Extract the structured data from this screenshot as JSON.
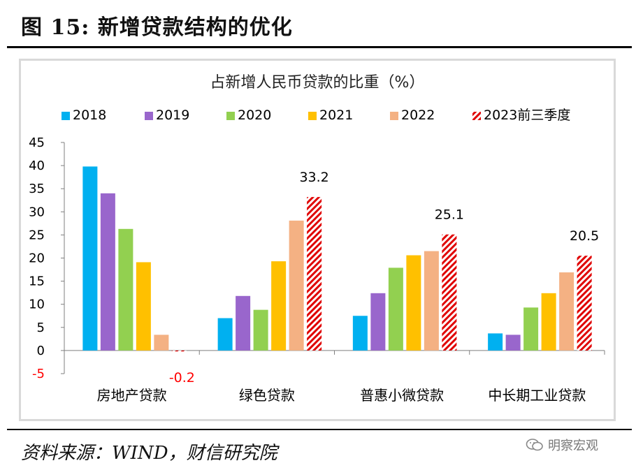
{
  "figure": {
    "title": "图 15:  新增贷款结构的优化",
    "source": "资料来源：WIND，财信研究院",
    "watermark": "明察宏观",
    "watermark_icon": "wechat-icon"
  },
  "chart_data": {
    "type": "bar",
    "title": "占新增人民币贷款的比重（%）",
    "categories": [
      "房地产贷款",
      "绿色贷款",
      "普惠小微贷款",
      "中长期工业贷款"
    ],
    "series": [
      {
        "name": "2018",
        "values": [
          39.8,
          7.0,
          7.5,
          3.7
        ],
        "color": "#00b0f0",
        "pattern": "solid"
      },
      {
        "name": "2019",
        "values": [
          34.0,
          11.8,
          12.4,
          3.4
        ],
        "color": "#9966cc",
        "pattern": "solid"
      },
      {
        "name": "2020",
        "values": [
          26.3,
          8.8,
          17.9,
          9.3
        ],
        "color": "#92d050",
        "pattern": "solid"
      },
      {
        "name": "2021",
        "values": [
          19.1,
          19.3,
          20.6,
          12.4
        ],
        "color": "#ffc000",
        "pattern": "solid"
      },
      {
        "name": "2022",
        "values": [
          3.4,
          28.1,
          21.5,
          16.9
        ],
        "color": "#f4b183",
        "pattern": "solid"
      },
      {
        "name": "2023前三季度",
        "values": [
          -0.2,
          33.2,
          25.1,
          20.5
        ],
        "color": "#e00000",
        "pattern": "hatched"
      }
    ],
    "data_labels": [
      {
        "series": "2023前三季度",
        "category": "房地产贷款",
        "text": "-0.2",
        "color": "#ff0000"
      },
      {
        "series": "2023前三季度",
        "category": "绿色贷款",
        "text": "33.2",
        "color": "#000000"
      },
      {
        "series": "2023前三季度",
        "category": "普惠小微贷款",
        "text": "25.1",
        "color": "#000000"
      },
      {
        "series": "2023前三季度",
        "category": "中长期工业贷款",
        "text": "20.5",
        "color": "#000000"
      }
    ],
    "ylim": [
      -5,
      45
    ],
    "yticks": [
      "-5",
      "0",
      "5",
      "10",
      "15",
      "20",
      "25",
      "30",
      "35",
      "40",
      "45"
    ],
    "negative_tick_color": "#ff0000",
    "legend_position": "top",
    "grid": false
  }
}
